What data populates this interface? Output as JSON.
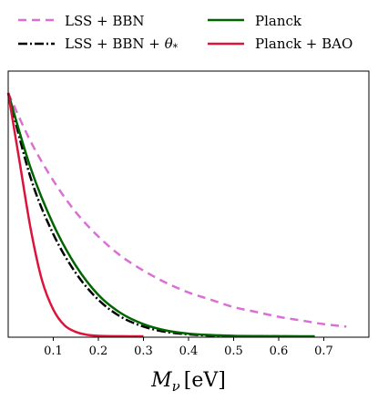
{
  "chart_data": {
    "type": "line",
    "xlabel_symbol": "M",
    "xlabel_subscript": "ν",
    "xlabel_unit": "[eV]",
    "ylabel": "",
    "xlim": [
      0.0,
      0.8
    ],
    "ylim": [
      0.0,
      1.0
    ],
    "xticks": [
      0.1,
      0.2,
      0.3,
      0.4,
      0.5,
      0.6,
      0.7
    ],
    "xtick_labels": [
      "0.1",
      "0.2",
      "0.3",
      "0.4",
      "0.5",
      "0.6",
      "0.7"
    ],
    "legend_placement": "top (above plot), two columns",
    "series": [
      {
        "name": "LSS + BBN",
        "color": "#DA70D6",
        "style": "dashed",
        "x": [
          0.0,
          0.05,
          0.1,
          0.15,
          0.2,
          0.25,
          0.3,
          0.35,
          0.4,
          0.45,
          0.5,
          0.55,
          0.6,
          0.65,
          0.7,
          0.75
        ],
        "y": [
          1.0,
          0.8,
          0.64,
          0.51,
          0.41,
          0.33,
          0.27,
          0.22,
          0.18,
          0.15,
          0.12,
          0.1,
          0.08,
          0.065,
          0.05,
          0.04
        ]
      },
      {
        "name": "LSS + BBN + θ*",
        "color": "#000000",
        "style": "dashdot",
        "x": [
          0.0,
          0.05,
          0.1,
          0.15,
          0.2,
          0.25,
          0.3,
          0.35,
          0.4,
          0.45,
          0.5,
          0.55,
          0.6
        ],
        "y": [
          1.0,
          0.65,
          0.42,
          0.26,
          0.15,
          0.08,
          0.04,
          0.018,
          0.008,
          0.003,
          0.001,
          0.0005,
          0.0
        ]
      },
      {
        "name": "Planck",
        "color": "#006400",
        "style": "solid",
        "x": [
          0.0,
          0.05,
          0.1,
          0.15,
          0.2,
          0.25,
          0.3,
          0.35,
          0.4,
          0.45,
          0.5,
          0.55,
          0.6,
          0.65,
          0.68
        ],
        "y": [
          1.0,
          0.69,
          0.46,
          0.29,
          0.17,
          0.095,
          0.05,
          0.024,
          0.011,
          0.005,
          0.002,
          0.001,
          0.0005,
          0.0002,
          0.0
        ]
      },
      {
        "name": "Planck + BAO",
        "color": "#DC143C",
        "style": "solid",
        "x": [
          0.0,
          0.025,
          0.05,
          0.075,
          0.1,
          0.125,
          0.15,
          0.175,
          0.2,
          0.25,
          0.3
        ],
        "y": [
          1.0,
          0.72,
          0.44,
          0.23,
          0.11,
          0.045,
          0.018,
          0.006,
          0.002,
          0.0003,
          0.0
        ]
      }
    ],
    "legend_labels": {
      "s0": "LSS + BBN",
      "s1_main": "LSS + BBN + ",
      "s1_theta": "θ",
      "s1_sub": "*",
      "s2": "Planck",
      "s3": "Planck + BAO"
    }
  }
}
